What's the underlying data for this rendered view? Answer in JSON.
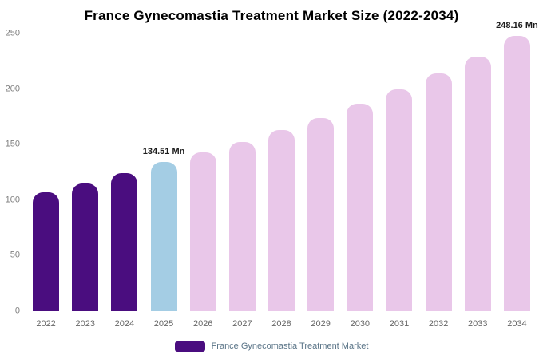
{
  "title": "France Gynecomastia Treatment Market Size (2022-2034)",
  "legend": {
    "label": "France Gynecomastia Treatment Market",
    "swatch_color": "#4a0d7f"
  },
  "chart_data": {
    "type": "bar",
    "title": "France Gynecomastia Treatment Market Size (2022-2034)",
    "xlabel": "",
    "ylabel": "",
    "unit": "Mn",
    "ylim": [
      0,
      250
    ],
    "yticks": [
      0,
      50,
      100,
      150,
      200,
      250
    ],
    "grid": false,
    "legend_position": "bottom",
    "categories": [
      "2022",
      "2023",
      "2024",
      "2025",
      "2026",
      "2027",
      "2028",
      "2029",
      "2030",
      "2031",
      "2032",
      "2033",
      "2034"
    ],
    "values": [
      107,
      115,
      124,
      134.51,
      143,
      152,
      163,
      174,
      187,
      200,
      214,
      229,
      248.16
    ],
    "palette": {
      "historical": "#4a0d7f",
      "base_year": "#a4cde4",
      "forecast": "#e9c7e9"
    },
    "bar_roles": [
      "historical",
      "historical",
      "historical",
      "base_year",
      "forecast",
      "forecast",
      "forecast",
      "forecast",
      "forecast",
      "forecast",
      "forecast",
      "forecast",
      "forecast"
    ],
    "annotations": [
      {
        "category": "2025",
        "label": "134.51 Mn"
      },
      {
        "category": "2034",
        "label": "248.16 Mn"
      }
    ],
    "legend_entries": [
      "France Gynecomastia Treatment Market"
    ]
  }
}
